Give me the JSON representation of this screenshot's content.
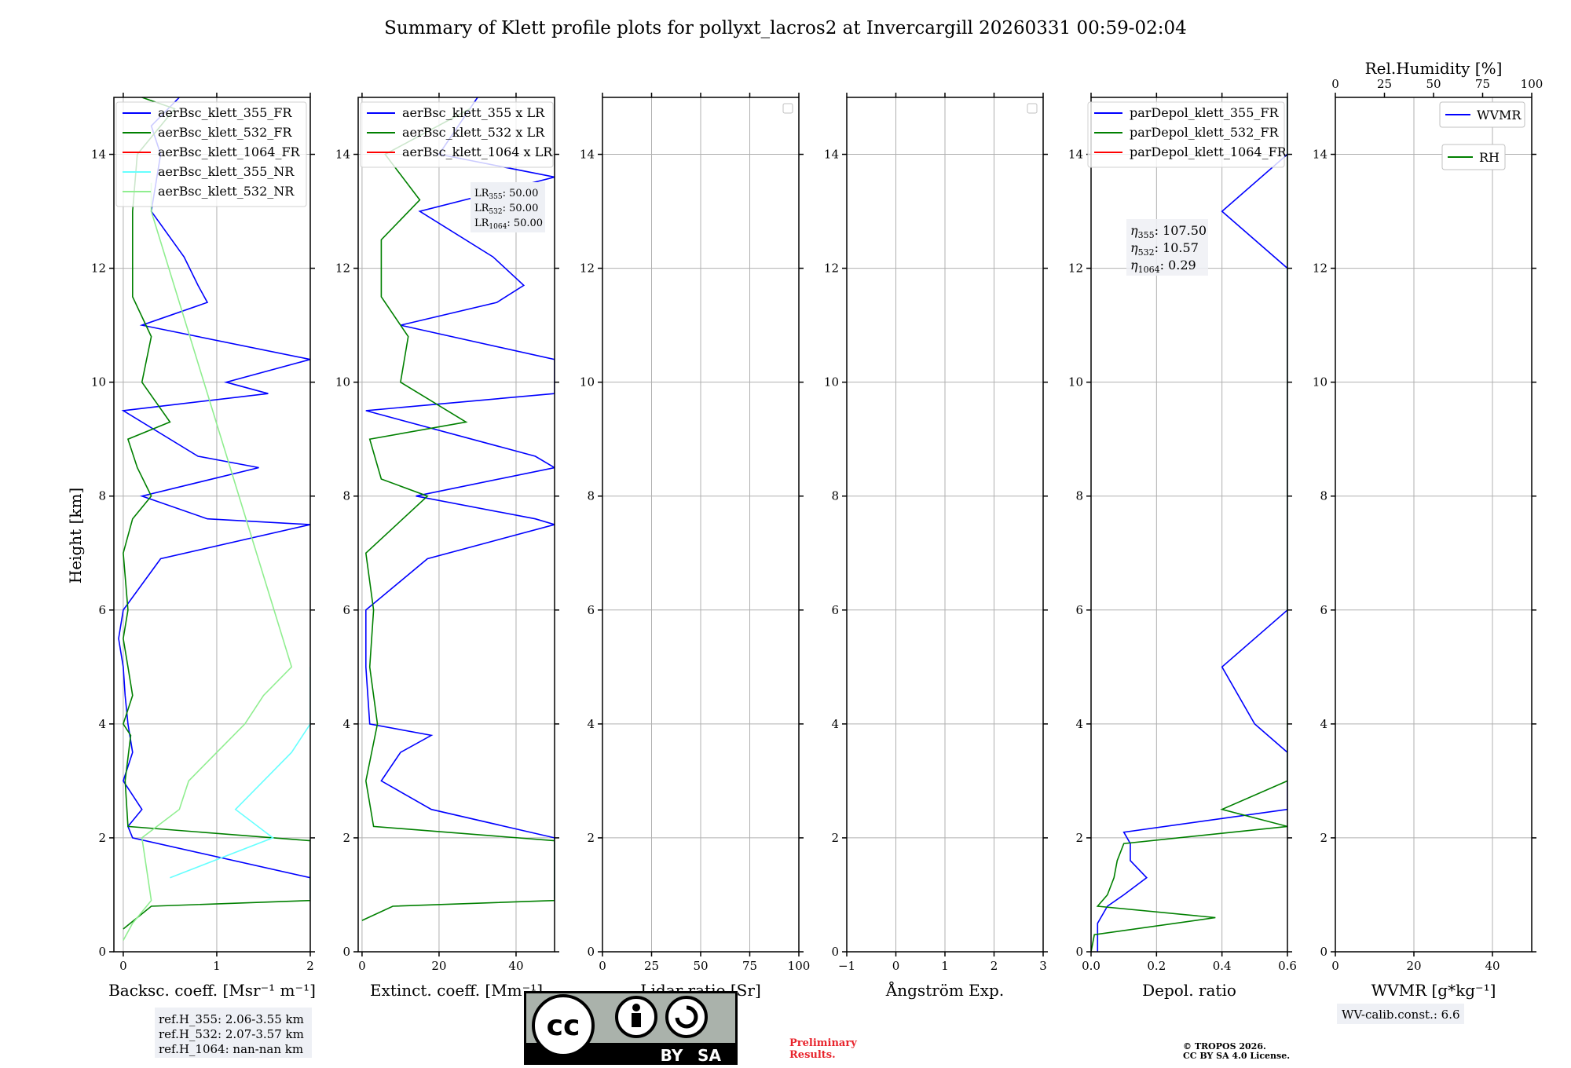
{
  "title": "Summary of Klett profile plots for pollyxt_lacros2 at Invercargill 20260331 00:59-02:04",
  "colors": {
    "c355": "#0000ff",
    "c532": "#008000",
    "c1064": "#ff0000",
    "c355nr": "#66ffff",
    "c532nr": "#90ee90",
    "rh": "#008000",
    "wvmr": "#0000ff"
  },
  "chart_data": [
    {
      "type": "line",
      "xlabel": "Backsc. coeff. [Msr⁻¹ m⁻¹]",
      "ylabel": "Height [km]",
      "xlim": [
        -0.1,
        2
      ],
      "ylim": [
        0,
        15
      ],
      "xticks": [
        0,
        1,
        2
      ],
      "yticks": [
        0,
        2,
        4,
        6,
        8,
        10,
        12,
        14
      ],
      "legend": [
        "aerBsc_klett_355_FR",
        "aerBsc_klett_532_FR",
        "aerBsc_klett_1064_FR",
        "aerBsc_klett_355_NR",
        "aerBsc_klett_532_NR"
      ],
      "series": [
        {
          "name": "aerBsc_klett_355_FR",
          "color": "c355",
          "y": [
            0.0,
            0.9,
            0.93,
            1.3,
            2.0,
            2.2,
            2.5,
            3.0,
            3.5,
            4.0,
            4.5,
            5.0,
            5.5,
            6.0,
            6.9,
            7.5,
            7.6,
            8.0,
            8.5,
            8.7,
            9.5,
            9.8,
            10.0,
            10.4,
            11.0,
            11.4,
            11.7,
            12.2,
            13.0,
            14.0,
            14.5,
            15.0
          ],
          "x": [
            null,
            null,
            2.0,
            2.0,
            0.1,
            0.05,
            0.2,
            0.0,
            0.1,
            0.05,
            0.02,
            0.0,
            -0.05,
            0.0,
            0.4,
            2.0,
            0.9,
            0.2,
            1.45,
            0.8,
            0.0,
            1.55,
            1.1,
            2.0,
            0.2,
            0.9,
            0.8,
            0.65,
            0.3,
            0.4,
            0.3,
            0.6
          ]
        },
        {
          "name": "aerBsc_klett_532_FR",
          "color": "c532",
          "y": [
            0.4,
            0.6,
            0.8,
            0.9,
            1.5,
            1.95,
            2.2,
            3.0,
            3.8,
            4.0,
            4.5,
            5.0,
            5.5,
            6.0,
            7.0,
            7.6,
            8.0,
            8.5,
            9.0,
            9.3,
            10.0,
            10.8,
            11.5,
            12.0,
            12.5,
            13.0,
            14.0,
            14.8,
            15.0
          ],
          "x": [
            0.0,
            0.15,
            0.3,
            2.0,
            2.0,
            2.0,
            0.05,
            0.02,
            0.08,
            0.0,
            0.1,
            0.05,
            0.0,
            0.05,
            0.0,
            0.1,
            0.3,
            0.15,
            0.05,
            0.5,
            0.2,
            0.3,
            0.1,
            0.1,
            0.1,
            0.1,
            0.15,
            0.55,
            0.2
          ]
        },
        {
          "name": "aerBsc_klett_1064_FR",
          "color": "c1064",
          "y": [],
          "x": []
        },
        {
          "name": "aerBsc_klett_355_NR",
          "color": "c355nr",
          "y": [
            1.3,
            2.0,
            2.5,
            3.0,
            3.5,
            4.0,
            4.3,
            4.5,
            4.8,
            5.0
          ],
          "x": [
            0.5,
            1.6,
            1.2,
            1.5,
            1.8,
            2.0,
            2.0,
            2.0,
            2.0,
            2.0
          ]
        },
        {
          "name": "aerBsc_klett_532_NR",
          "color": "c532nr",
          "y": [
            0.2,
            0.5,
            0.9,
            2.0,
            2.5,
            3.0,
            3.5,
            4.0,
            4.5,
            5.0,
            13.0,
            13.5
          ],
          "x": [
            0.0,
            0.1,
            0.3,
            0.2,
            0.6,
            0.7,
            1.0,
            1.3,
            1.5,
            1.8,
            0.3,
            0.3
          ]
        }
      ]
    },
    {
      "type": "line",
      "xlabel": "Extinct. coeff. [Mm⁻¹]",
      "xlim": [
        -1,
        50
      ],
      "ylim": [
        0,
        15
      ],
      "xticks": [
        0,
        20,
        40
      ],
      "yticks": [
        0,
        2,
        4,
        6,
        8,
        10,
        12,
        14
      ],
      "legend": [
        "aerBsc_klett_355 x LR",
        "aerBsc_klett_532 x LR",
        "aerBsc_klett_1064 x LR"
      ],
      "annotation": {
        "l355": "50.00",
        "l532": "50.00",
        "l1064": "50.00"
      },
      "series": [
        {
          "name": "aerBsc_klett_355 x LR",
          "color": "c355",
          "y": [
            0.93,
            2.0,
            2.5,
            3.0,
            3.5,
            3.8,
            4.0,
            5.0,
            6.0,
            6.9,
            7.5,
            7.6,
            8.0,
            8.5,
            8.7,
            9.5,
            9.8,
            10.0,
            10.4,
            11.0,
            11.4,
            11.7,
            12.2,
            13.0,
            13.6,
            14.0,
            15.0
          ],
          "x": [
            50,
            50,
            18,
            5,
            10,
            18,
            2,
            1,
            1,
            17,
            50,
            45,
            14,
            50,
            45,
            1,
            50,
            50,
            50,
            10,
            35,
            42,
            34,
            15,
            50,
            20,
            30
          ]
        },
        {
          "name": "aerBsc_klett_532 x LR",
          "color": "c532",
          "y": [
            0.55,
            0.8,
            0.9,
            1.95,
            2.2,
            3.0,
            4.0,
            4.5,
            5.0,
            6.0,
            7.0,
            8.0,
            8.3,
            9.0,
            9.3,
            10.0,
            10.8,
            11.5,
            12.5,
            13.2,
            14.0,
            14.8
          ],
          "x": [
            0,
            8,
            50,
            50,
            3,
            1,
            4,
            3,
            2,
            3,
            1,
            17,
            5,
            2,
            27,
            10,
            12,
            5,
            5,
            15,
            6,
            28
          ]
        },
        {
          "name": "aerBsc_klett_1064 x LR",
          "color": "c1064",
          "y": [],
          "x": []
        }
      ]
    },
    {
      "type": "line",
      "xlabel": "Lidar ratio [Sr]",
      "xlim": [
        0,
        100
      ],
      "ylim": [
        0,
        15
      ],
      "xticks": [
        0,
        25,
        50,
        75,
        100
      ],
      "yticks": [
        0,
        2,
        4,
        6,
        8,
        10,
        12,
        14
      ],
      "series": []
    },
    {
      "type": "line",
      "xlabel": "Ångström Exp.",
      "xlim": [
        -1,
        3
      ],
      "ylim": [
        0,
        15
      ],
      "xticks": [
        -1,
        0,
        1,
        2,
        3
      ],
      "yticks": [
        0,
        2,
        4,
        6,
        8,
        10,
        12,
        14
      ],
      "series": []
    },
    {
      "type": "line",
      "xlabel": "Depol. ratio",
      "xlim": [
        0,
        0.6
      ],
      "ylim": [
        0,
        15
      ],
      "xticks": [
        0.0,
        0.2,
        0.4,
        0.6
      ],
      "yticks": [
        0,
        2,
        4,
        6,
        8,
        10,
        12,
        14
      ],
      "legend": [
        "parDepol_klett_355_FR",
        "parDepol_klett_532_FR",
        "parDepol_klett_1064_FR"
      ],
      "annotation": {
        "e355": "107.50",
        "e532": "10.57",
        "e1064": "0.29"
      },
      "series": [
        {
          "name": "parDepol_klett_355_FR",
          "color": "c355",
          "y": [
            0.0,
            0.5,
            0.8,
            1.0,
            1.3,
            1.6,
            1.9,
            2.1,
            2.5,
            3.0,
            3.5,
            4.0,
            5.0,
            6.0,
            7.0,
            8.0,
            9.0,
            10.0,
            11.0,
            12.0,
            13.0,
            14.0,
            15.0
          ],
          "x": [
            0.02,
            0.02,
            0.05,
            0.1,
            0.17,
            0.12,
            0.12,
            0.1,
            0.6,
            0.6,
            0.6,
            0.5,
            0.4,
            0.6,
            0.6,
            0.6,
            0.6,
            0.6,
            0.6,
            0.6,
            0.4,
            0.6,
            0.6
          ]
        },
        {
          "name": "parDepol_klett_532_FR",
          "color": "c532",
          "y": [
            0.0,
            0.3,
            0.6,
            0.8,
            1.0,
            1.3,
            1.6,
            1.9,
            2.2,
            2.5,
            3.0,
            4.0,
            5.0,
            6.0,
            7.0,
            8.0,
            9.0,
            10.0,
            11.0,
            12.0,
            13.0,
            14.0,
            15.0
          ],
          "x": [
            0.0,
            0.01,
            0.38,
            0.02,
            0.05,
            0.07,
            0.08,
            0.1,
            0.6,
            0.4,
            0.6,
            0.6,
            0.6,
            0.6,
            0.6,
            0.6,
            0.6,
            0.6,
            0.6,
            0.6,
            0.6,
            0.6,
            0.6
          ]
        },
        {
          "name": "parDepol_klett_1064_FR",
          "color": "c1064",
          "y": [],
          "x": []
        }
      ]
    },
    {
      "type": "line",
      "xlabel": "WVMR [g*kg⁻¹]",
      "toplabel": "Rel.Humidity [%]",
      "xlim": [
        0,
        50
      ],
      "xlim_top": [
        0,
        100
      ],
      "ylim": [
        0,
        15
      ],
      "xticks": [
        0,
        20,
        40
      ],
      "xticks_top": [
        0,
        25,
        50,
        75,
        100
      ],
      "yticks": [
        0,
        2,
        4,
        6,
        8,
        10,
        12,
        14
      ],
      "legend": [
        "WVMR",
        "RH"
      ],
      "series": []
    }
  ],
  "notes": {
    "ref355": "ref.H_355: 2.06-3.55 km",
    "ref532": "ref.H_532: 2.07-3.57 km",
    "ref1064": "ref.H_1064: nan-nan km",
    "wvcalib": "WV-calib.const.: 6.6",
    "prelim1": "Preliminary",
    "prelim2": "Results.",
    "copy1": "© TROPOS 2026.",
    "copy2": "CC BY SA 4.0 License.",
    "cc_by": "BY",
    "cc_sa": "SA",
    "cc_mark": "cc"
  }
}
